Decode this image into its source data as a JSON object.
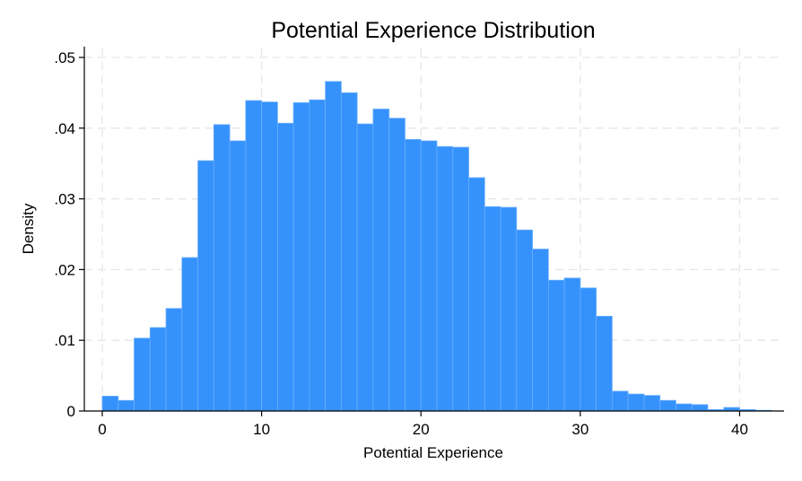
{
  "chart_data": {
    "type": "bar",
    "title": "Potential Experience Distribution",
    "xlabel": "Potential Experience",
    "ylabel": "Density",
    "xlim": [
      0,
      42
    ],
    "ylim": [
      0,
      0.05
    ],
    "x_ticks": [
      {
        "value": 0,
        "label": "0"
      },
      {
        "value": 10,
        "label": "10"
      },
      {
        "value": 20,
        "label": "20"
      },
      {
        "value": 30,
        "label": "30"
      },
      {
        "value": 40,
        "label": "40"
      }
    ],
    "y_ticks": [
      {
        "value": 0,
        "label": "0"
      },
      {
        "value": 0.01,
        "label": ".01"
      },
      {
        "value": 0.02,
        "label": ".02"
      },
      {
        "value": 0.03,
        "label": ".03"
      },
      {
        "value": 0.04,
        "label": ".04"
      },
      {
        "value": 0.05,
        "label": ".05"
      }
    ],
    "grid": true,
    "bar_color": "#3592fd",
    "bin_width": 1,
    "bin_starts": [
      0,
      1,
      2,
      3,
      4,
      5,
      6,
      7,
      8,
      9,
      10,
      11,
      12,
      13,
      14,
      15,
      16,
      17,
      18,
      19,
      20,
      21,
      22,
      23,
      24,
      25,
      26,
      27,
      28,
      29,
      30,
      31,
      32,
      33,
      34,
      35,
      36,
      37,
      38,
      39,
      40,
      41
    ],
    "values": [
      0.0021,
      0.0015,
      0.0103,
      0.0118,
      0.0145,
      0.0217,
      0.0354,
      0.0405,
      0.0382,
      0.0439,
      0.0437,
      0.0407,
      0.0436,
      0.044,
      0.0466,
      0.045,
      0.0406,
      0.0427,
      0.0414,
      0.0384,
      0.0382,
      0.0374,
      0.0373,
      0.033,
      0.0289,
      0.0288,
      0.0256,
      0.0229,
      0.0185,
      0.0188,
      0.0174,
      0.0134,
      0.0028,
      0.0024,
      0.0022,
      0.0015,
      0.001,
      0.0009,
      0.0002,
      0.0005,
      0.0002,
      0.0001
    ]
  }
}
